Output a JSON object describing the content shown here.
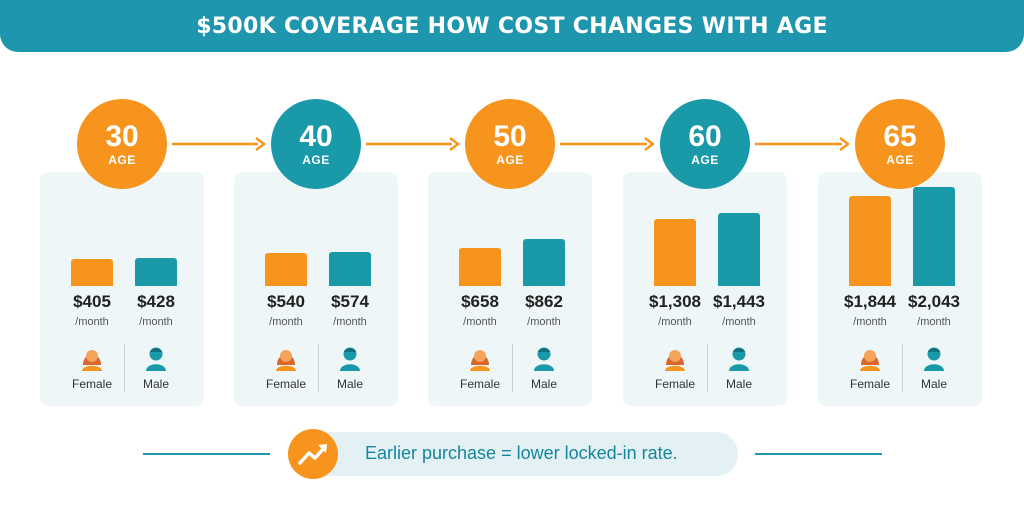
{
  "title": "$500K COVERAGE HOW COST CHANGES WITH AGE",
  "age_word": "AGE",
  "per_label": "/month",
  "female_label": "Female",
  "male_label": "Male",
  "tagline": "Earlier purchase = lower locked-in rate.",
  "colors": {
    "accent": "#1e96ae",
    "orange": "#f7941d",
    "card_bg": "#eef6f8"
  },
  "icons": {
    "female": "female-person-icon",
    "male": "male-person-icon",
    "trend": "trend-up-icon",
    "arrow": "arrow-right-icon"
  },
  "chart_data": {
    "type": "bar",
    "title": "$500K COVERAGE HOW COST CHANGES WITH AGE",
    "unit": "/month",
    "categories": [
      "30",
      "40",
      "50",
      "60",
      "65"
    ],
    "category_label": "AGE",
    "series": [
      {
        "name": "Female",
        "values": [
          405,
          540,
          658,
          1308,
          1844
        ],
        "labels": [
          "$405",
          "$540",
          "$658",
          "$1,308",
          "$1,844"
        ],
        "color": "#f7941d"
      },
      {
        "name": "Male",
        "values": [
          428,
          574,
          862,
          1443,
          2043
        ],
        "labels": [
          "$428",
          "$574",
          "$862",
          "$1,443",
          "$2,043"
        ],
        "color": "#1a9aa9"
      }
    ],
    "grid": false
  }
}
